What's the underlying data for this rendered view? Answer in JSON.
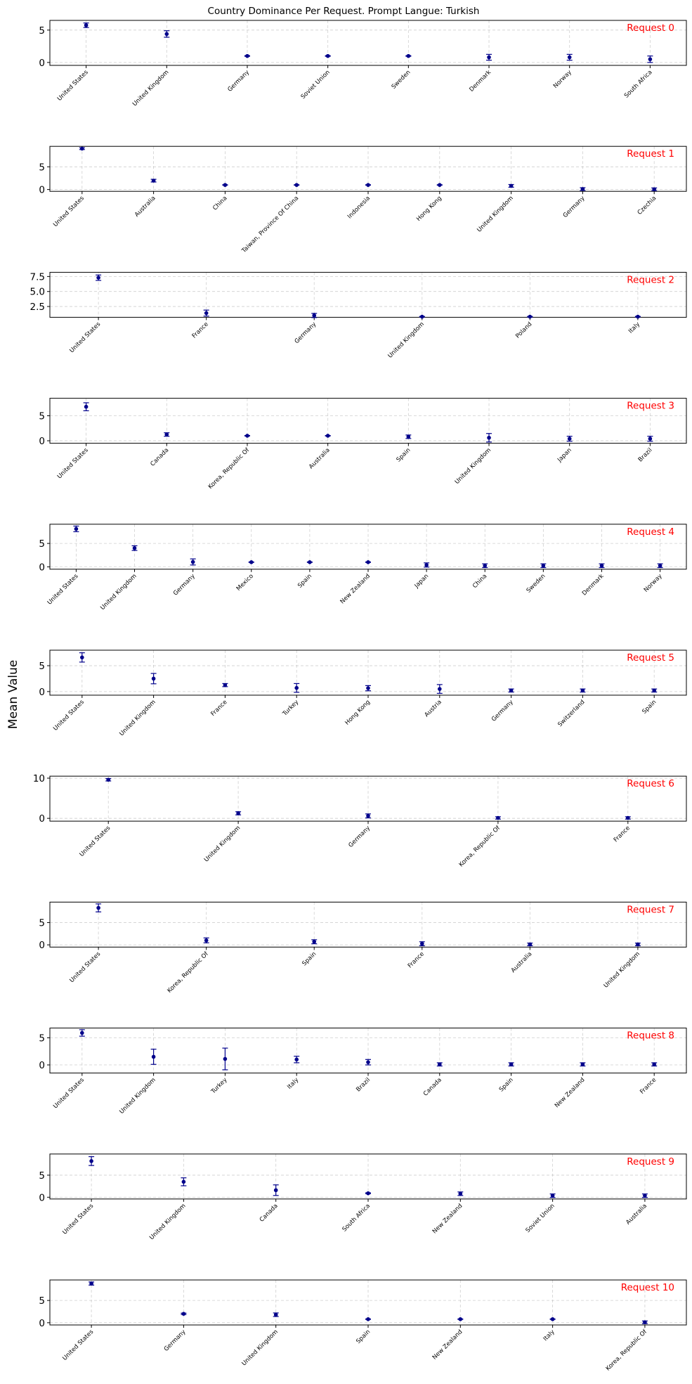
{
  "title": "Country Dominance Per Request. Prompt Langue: Turkish",
  "ylabel": "Mean Value",
  "colors": {
    "marker": "#00008b",
    "request_label": "#ff0000",
    "grid": "#b0b0b0",
    "frame": "#000000"
  },
  "chart_data": [
    {
      "type": "scatter",
      "request_label": "Request 0",
      "categories": [
        "United States",
        "United Kingdom",
        "Germany",
        "Soviet Union",
        "Sweden",
        "Denmark",
        "Norway",
        "South Africa"
      ],
      "values": [
        5.75,
        4.4,
        1.0,
        1.0,
        1.0,
        0.8,
        0.8,
        0.5
      ],
      "errors": [
        0.35,
        0.5,
        0.05,
        0.05,
        0.05,
        0.45,
        0.45,
        0.5
      ],
      "ylim": [
        -0.45,
        6.5
      ],
      "yticks": [
        0,
        5
      ],
      "ytick_labels": [
        "0",
        "5"
      ],
      "grid": true,
      "label_placement": "top-right"
    },
    {
      "type": "scatter",
      "request_label": "Request 1",
      "categories": [
        "United States",
        "Australia",
        "China",
        "Taiwan, Province Of China",
        "Indonesia",
        "Hong Kong",
        "United Kingdom",
        "Germany",
        "Czechia"
      ],
      "values": [
        9.0,
        1.95,
        1.0,
        1.0,
        1.0,
        1.0,
        0.8,
        0.1,
        0.05
      ],
      "errors": [
        0.2,
        0.3,
        0.05,
        0.05,
        0.05,
        0.05,
        0.3,
        0.3,
        0.3
      ],
      "ylim": [
        -0.4,
        9.5
      ],
      "yticks": [
        0,
        5
      ],
      "ytick_labels": [
        "0",
        "5"
      ],
      "grid": true,
      "label_placement": "top-right"
    },
    {
      "type": "scatter",
      "request_label": "Request 2",
      "categories": [
        "United States",
        "France",
        "Germany",
        "United Kingdom",
        "Poland",
        "Italy"
      ],
      "values": [
        7.3,
        1.4,
        1.0,
        0.8,
        0.8,
        0.8
      ],
      "errors": [
        0.45,
        0.5,
        0.35,
        0.05,
        0.05,
        0.05
      ],
      "ylim": [
        0.7,
        8.2
      ],
      "yticks": [
        2.5,
        5.0,
        7.5
      ],
      "ytick_labels": [
        "2.5",
        "5.0",
        "7.5"
      ],
      "grid": true,
      "label_placement": "top-right"
    },
    {
      "type": "scatter",
      "request_label": "Request 3",
      "categories": [
        "United States",
        "Canada",
        "Korea, Republic Of",
        "Australia",
        "Spain",
        "United Kingdom",
        "Japan",
        "Brazil"
      ],
      "values": [
        6.8,
        1.25,
        1.0,
        1.0,
        0.8,
        0.6,
        0.4,
        0.4
      ],
      "errors": [
        0.8,
        0.35,
        0.05,
        0.05,
        0.35,
        0.85,
        0.5,
        0.5
      ],
      "ylim": [
        -0.5,
        8.5
      ],
      "yticks": [
        0,
        5
      ],
      "ytick_labels": [
        "0",
        "5"
      ],
      "grid": true,
      "label_placement": "top-right"
    },
    {
      "type": "scatter",
      "request_label": "Request 4",
      "categories": [
        "United States",
        "United Kingdom",
        "Germany",
        "Mexico",
        "Spain",
        "New Zealand",
        "Japan",
        "China",
        "Sweden",
        "Denmark",
        "Norway"
      ],
      "values": [
        8.1,
        4.0,
        1.05,
        1.0,
        1.0,
        1.0,
        0.4,
        0.25,
        0.25,
        0.25,
        0.25
      ],
      "errors": [
        0.6,
        0.5,
        0.65,
        0.05,
        0.05,
        0.05,
        0.45,
        0.4,
        0.4,
        0.4,
        0.4
      ],
      "ylim": [
        -0.5,
        9.1
      ],
      "yticks": [
        0,
        5
      ],
      "ytick_labels": [
        "0",
        "5"
      ],
      "grid": true,
      "label_placement": "top-right"
    },
    {
      "type": "scatter",
      "request_label": "Request 5",
      "categories": [
        "United States",
        "United Kingdom",
        "France",
        "Turkey",
        "Hong Kong",
        "Austria",
        "Germany",
        "Switzerland",
        "Spain"
      ],
      "values": [
        6.6,
        2.5,
        1.25,
        0.7,
        0.65,
        0.5,
        0.2,
        0.2,
        0.2
      ],
      "errors": [
        0.9,
        1.0,
        0.3,
        0.85,
        0.5,
        0.85,
        0.3,
        0.3,
        0.3
      ],
      "ylim": [
        -0.7,
        8.0
      ],
      "yticks": [
        0,
        5
      ],
      "ytick_labels": [
        "0",
        "5"
      ],
      "grid": true,
      "label_placement": "top-right"
    },
    {
      "type": "scatter",
      "request_label": "Request 6",
      "categories": [
        "United States",
        "United Kingdom",
        "Germany",
        "Korea, Republic Of",
        "France"
      ],
      "values": [
        9.6,
        1.25,
        0.6,
        0.1,
        0.1
      ],
      "errors": [
        0.3,
        0.4,
        0.5,
        0.3,
        0.3
      ],
      "ylim": [
        -0.7,
        10.5
      ],
      "yticks": [
        0,
        10
      ],
      "ytick_labels": [
        "0",
        "10"
      ],
      "grid": true,
      "label_placement": "top-right"
    },
    {
      "type": "scatter",
      "request_label": "Request 7",
      "categories": [
        "United States",
        "Korea, Republic Of",
        "Spain",
        "France",
        "Australia",
        "United Kingdom"
      ],
      "values": [
        8.3,
        1.0,
        0.7,
        0.25,
        0.1,
        0.1
      ],
      "errors": [
        0.9,
        0.55,
        0.45,
        0.45,
        0.3,
        0.3
      ],
      "ylim": [
        -0.5,
        9.6
      ],
      "yticks": [
        0,
        5
      ],
      "ytick_labels": [
        "0",
        "5"
      ],
      "grid": true,
      "label_placement": "top-right"
    },
    {
      "type": "scatter",
      "request_label": "Request 8",
      "categories": [
        "United States",
        "United Kingdom",
        "Turkey",
        "Italy",
        "Brazil",
        "Canada",
        "Spain",
        "New Zealand",
        "France"
      ],
      "values": [
        5.9,
        1.5,
        1.1,
        1.0,
        0.5,
        0.1,
        0.1,
        0.1,
        0.1
      ],
      "errors": [
        0.6,
        1.4,
        2.0,
        0.6,
        0.5,
        0.3,
        0.3,
        0.3,
        0.3
      ],
      "ylim": [
        -1.5,
        6.8
      ],
      "yticks": [
        0,
        5
      ],
      "ytick_labels": [
        "0",
        "5"
      ],
      "grid": true,
      "label_placement": "top-right"
    },
    {
      "type": "scatter",
      "request_label": "Request 9",
      "categories": [
        "United States",
        "United Kingdom",
        "Canada",
        "South Africa",
        "New Zealand",
        "Soviet Union",
        "Australia"
      ],
      "values": [
        8.2,
        3.5,
        1.6,
        0.9,
        0.8,
        0.35,
        0.35
      ],
      "errors": [
        1.0,
        0.9,
        1.2,
        0.1,
        0.4,
        0.4,
        0.4
      ],
      "ylim": [
        -0.4,
        9.8
      ],
      "yticks": [
        0,
        5
      ],
      "ytick_labels": [
        "0",
        "5"
      ],
      "grid": true,
      "label_placement": "top-right"
    },
    {
      "type": "scatter",
      "request_label": "Request 10",
      "categories": [
        "United States",
        "Germany",
        "United Kingdom",
        "Spain",
        "New Zealand",
        "Italy",
        "Korea, Republic Of"
      ],
      "values": [
        8.8,
        2.0,
        1.8,
        0.8,
        0.8,
        0.8,
        0.1
      ],
      "errors": [
        0.35,
        0.15,
        0.4,
        0.05,
        0.05,
        0.05,
        0.3
      ],
      "ylim": [
        -0.5,
        9.6
      ],
      "yticks": [
        0,
        5
      ],
      "ytick_labels": [
        "0",
        "5"
      ],
      "grid": true,
      "label_placement": "top-right"
    }
  ]
}
